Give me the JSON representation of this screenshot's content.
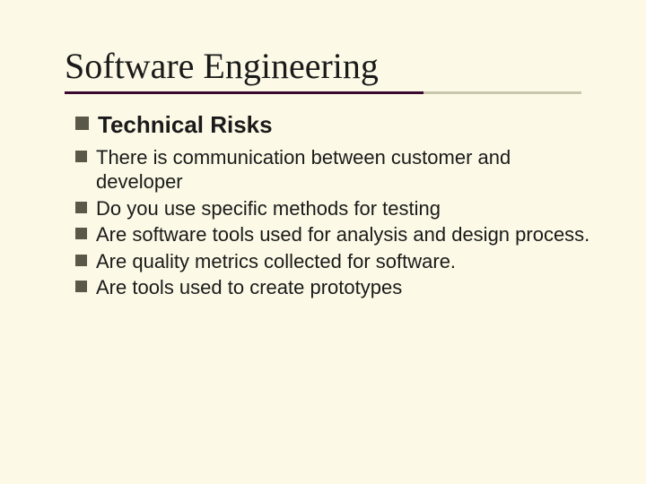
{
  "colors": {
    "slide_background": "#fcfae6",
    "title_text": "#1a1a1a",
    "body_text": "#1a1a1a",
    "underline_primary": "#3a0830",
    "underline_secondary": "#c9c6ab",
    "bullet_fill": "#5a5848"
  },
  "typography": {
    "title_font": "Times New Roman",
    "body_font": "Arial",
    "title_fontsize": 40,
    "subtitle_fontsize": 26,
    "body_fontsize": 22
  },
  "title": "Software Engineering",
  "subtitle": "Technical Risks",
  "bullets": [
    " There is communication between customer and developer",
    " Do you use specific methods for testing",
    " Are software tools used for analysis and design process.",
    "Are quality metrics collected for software.",
    "Are tools used to create prototypes"
  ]
}
